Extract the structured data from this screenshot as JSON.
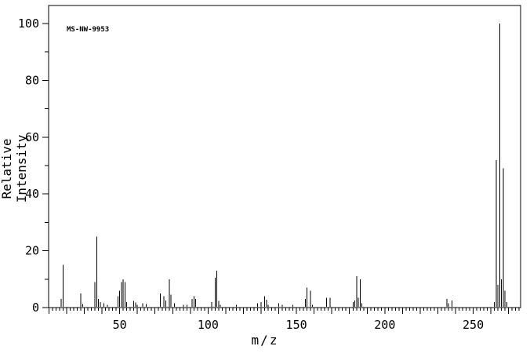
{
  "chart_data": {
    "type": "bar",
    "subtype": "mass-spectrum-stick-plot",
    "title": "",
    "annotation": "MS-NW-9953",
    "xlabel": "m/z",
    "ylabel": "Relative Intensity",
    "xlim": [
      9.8,
      276.8
    ],
    "ylim": [
      0,
      100
    ],
    "x_tick_labels": [
      50,
      100,
      150,
      200,
      250
    ],
    "x_minor_tick_step": 2,
    "x_medium_tick_step": 10,
    "y_tick_labels": [
      0,
      20,
      40,
      60,
      80,
      100
    ],
    "y_minor_tick_step": 10,
    "grid": false,
    "line_color": "#000000",
    "background_color": "#ffffff",
    "peaks": [
      [
        17,
        3
      ],
      [
        18,
        15
      ],
      [
        28,
        5
      ],
      [
        29,
        1.2
      ],
      [
        36,
        9
      ],
      [
        37,
        25
      ],
      [
        38,
        3
      ],
      [
        39,
        2
      ],
      [
        41,
        1.5
      ],
      [
        43,
        1
      ],
      [
        49,
        4
      ],
      [
        50,
        6
      ],
      [
        51,
        9
      ],
      [
        52,
        10
      ],
      [
        53,
        9
      ],
      [
        54,
        2
      ],
      [
        58,
        2.3
      ],
      [
        59,
        1.8
      ],
      [
        60,
        1
      ],
      [
        63,
        1.5
      ],
      [
        65,
        1.2
      ],
      [
        73,
        5
      ],
      [
        75,
        4
      ],
      [
        76,
        2.5
      ],
      [
        78,
        10
      ],
      [
        79,
        4.5
      ],
      [
        81,
        1.5
      ],
      [
        86,
        1
      ],
      [
        88,
        1
      ],
      [
        91,
        3
      ],
      [
        92,
        4
      ],
      [
        93,
        3
      ],
      [
        102,
        2
      ],
      [
        104,
        10.5
      ],
      [
        105,
        13
      ],
      [
        106,
        2.3
      ],
      [
        107,
        1
      ],
      [
        116,
        1
      ],
      [
        128,
        1.5
      ],
      [
        130,
        2
      ],
      [
        132,
        4
      ],
      [
        133,
        2.7
      ],
      [
        134,
        1
      ],
      [
        140,
        1.5
      ],
      [
        142,
        1
      ],
      [
        148,
        1
      ],
      [
        155,
        3
      ],
      [
        156,
        7
      ],
      [
        158,
        6
      ],
      [
        159,
        1
      ],
      [
        167,
        3.5
      ],
      [
        169,
        3.5
      ],
      [
        182,
        2
      ],
      [
        183,
        2.5
      ],
      [
        184,
        11
      ],
      [
        185,
        3.5
      ],
      [
        186,
        10
      ],
      [
        187,
        1.5
      ],
      [
        235,
        3
      ],
      [
        236,
        1.5
      ],
      [
        238,
        2.5
      ],
      [
        262,
        2
      ],
      [
        263,
        52
      ],
      [
        264,
        8
      ],
      [
        265,
        100
      ],
      [
        266,
        10
      ],
      [
        267,
        49
      ],
      [
        268,
        6
      ],
      [
        269,
        2
      ]
    ]
  }
}
